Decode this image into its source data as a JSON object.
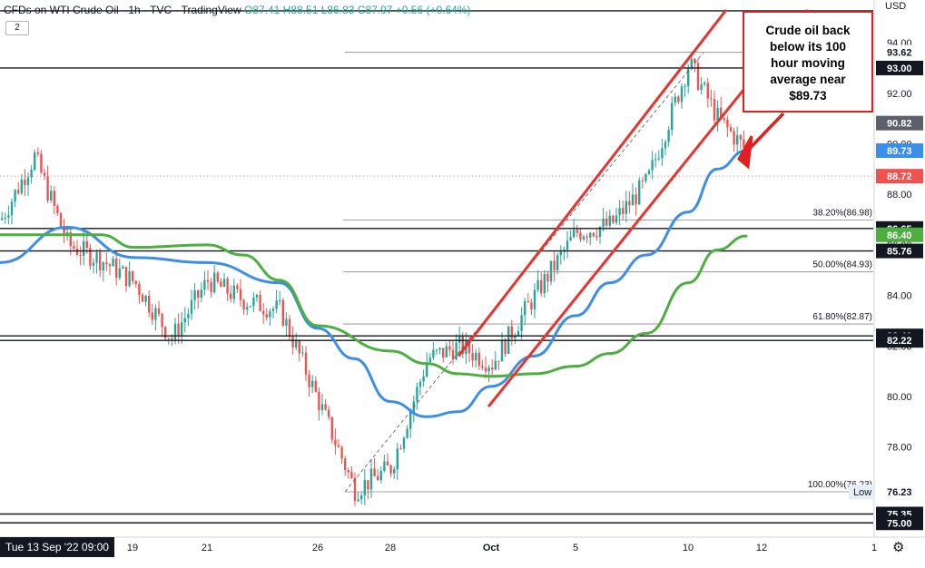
{
  "header": {
    "symbol_line": "CFDs on WTI Crude Oil · 1h · TVC · TradingView",
    "ohlc": "O87.41 H88.51 L86.83 C87.97 +0.56 (+0.64%)",
    "badge": "2"
  },
  "currency": "USD",
  "date_label": "Tue 13 Sep '22  09:00",
  "annotation": [
    "Crude oil back",
    "below its 100",
    "hour moving",
    "average near",
    "$89.73"
  ],
  "colors": {
    "up": "#26a69a",
    "down": "#ef5350",
    "ma100": "#3d8ee8",
    "ma200": "#4caf3f",
    "channel": "#e8332f",
    "callout": "#e02020"
  },
  "chart_data": {
    "type": "line",
    "title": "CFDs on WTI Crude Oil · 1h · TVC · TradingView",
    "xlabel": "",
    "ylabel": "USD",
    "x_ticks": [
      "19",
      "21",
      "26",
      "28",
      "Oct",
      "5",
      "10",
      "12",
      "1"
    ],
    "y_ticks": [
      78,
      80,
      82,
      84,
      86,
      88,
      90,
      92,
      94
    ],
    "ylim": [
      74.7,
      95.3
    ],
    "grid": false,
    "series": [
      {
        "name": "",
        "points": [
          [
            "Sep 13",
            87.0
          ],
          [
            "Sep 14",
            89.5
          ],
          [
            "Sep 15",
            86.0
          ],
          [
            "Sep 16",
            85.4
          ],
          [
            "Sep 19",
            84.5
          ],
          [
            "Sep 20",
            82.3
          ],
          [
            "Sep 21",
            84.6
          ],
          [
            "Sep 22",
            83.8
          ],
          [
            "Sep 23",
            83.4
          ],
          [
            "Sep 26",
            79.8
          ],
          [
            "Sep 27",
            76.3
          ],
          [
            "Sep 28",
            77.2
          ],
          [
            "Sep 29",
            81.5
          ],
          [
            "Sep 30",
            82.0
          ],
          [
            "Oct 3",
            81.3
          ],
          [
            "Oct 4",
            84.0
          ],
          [
            "Oct 5",
            86.5
          ],
          [
            "Oct 6",
            86.8
          ],
          [
            "Oct 7",
            88.5
          ],
          [
            "Oct 10",
            93.2
          ],
          [
            "Oct 11",
            91.0
          ],
          [
            "Oct 12",
            89.7
          ]
        ]
      },
      {
        "name": "",
        "points": [
          [
            "Sep 13",
            85.3
          ],
          [
            "Sep 15",
            86.7
          ],
          [
            "Sep 19",
            85.5
          ],
          [
            "Sep 21",
            85.3
          ],
          [
            "Sep 23",
            84.5
          ],
          [
            "Sep 26",
            82.7
          ],
          [
            "Sep 27",
            81.5
          ],
          [
            "Sep 28",
            79.8
          ],
          [
            "Sep 29",
            79.2
          ],
          [
            "Sep 30",
            79.4
          ],
          [
            "Oct 3",
            80.4
          ],
          [
            "Oct 4",
            81.6
          ],
          [
            "Oct 5",
            83.2
          ],
          [
            "Oct 6",
            84.5
          ],
          [
            "Oct 7",
            85.6
          ],
          [
            "Oct 10",
            87.3
          ],
          [
            "Oct 11",
            89.0
          ],
          [
            "Oct 12",
            89.73
          ]
        ]
      },
      {
        "name": "",
        "points": [
          [
            "Sep 13",
            86.4
          ],
          [
            "Sep 16",
            86.4
          ],
          [
            "Sep 19",
            85.9
          ],
          [
            "Sep 21",
            86.0
          ],
          [
            "Sep 22",
            85.6
          ],
          [
            "Sep 23",
            84.6
          ],
          [
            "Sep 26",
            82.8
          ],
          [
            "Sep 28",
            81.8
          ],
          [
            "Sep 29",
            81.3
          ],
          [
            "Sep 30",
            80.9
          ],
          [
            "Oct 3",
            80.8
          ],
          [
            "Oct 4",
            80.9
          ],
          [
            "Oct 5",
            81.2
          ],
          [
            "Oct 6",
            81.7
          ],
          [
            "Oct 7",
            82.5
          ],
          [
            "Oct 10",
            84.5
          ],
          [
            "Oct 11",
            85.8
          ],
          [
            "Oct 12",
            86.35
          ]
        ]
      }
    ],
    "horizontal_levels": [
      93.0,
      86.65,
      85.76,
      82.4,
      82.22,
      75.35,
      75.0
    ],
    "fib_levels": [
      {
        "label": "38.20%(86.98)",
        "price": 86.98
      },
      {
        "label": "50.00%(84.93)",
        "price": 84.93
      },
      {
        "label": "61.80%(82.87)",
        "price": 82.87
      },
      {
        "label": "100.00%(76.23)",
        "price": 76.23
      }
    ],
    "price_labels": [
      {
        "text": "93.62",
        "price": 93.62,
        "style": "plain"
      },
      {
        "text": "93.00",
        "price": 93.0,
        "style": "dark"
      },
      {
        "text": "90.82",
        "price": 90.82,
        "style": "gray"
      },
      {
        "text": "89.73",
        "price": 89.73,
        "style": "blue"
      },
      {
        "text": "88.72",
        "price": 88.72,
        "style": "red"
      },
      {
        "text": "86.65",
        "price": 86.65,
        "style": "dark"
      },
      {
        "text": "86.40",
        "price": 86.4,
        "style": "green"
      },
      {
        "text": "85.76",
        "price": 85.76,
        "style": "dark"
      },
      {
        "text": "82.40",
        "price": 82.4,
        "style": "dark"
      },
      {
        "text": "82.22",
        "price": 82.22,
        "style": "dark"
      },
      {
        "text": "76.23",
        "price": 76.23,
        "style": "plain"
      },
      {
        "text": "75.35",
        "price": 75.35,
        "style": "dark"
      },
      {
        "text": "75.00",
        "price": 75.0,
        "style": "dark"
      }
    ],
    "low_label": "Low"
  }
}
